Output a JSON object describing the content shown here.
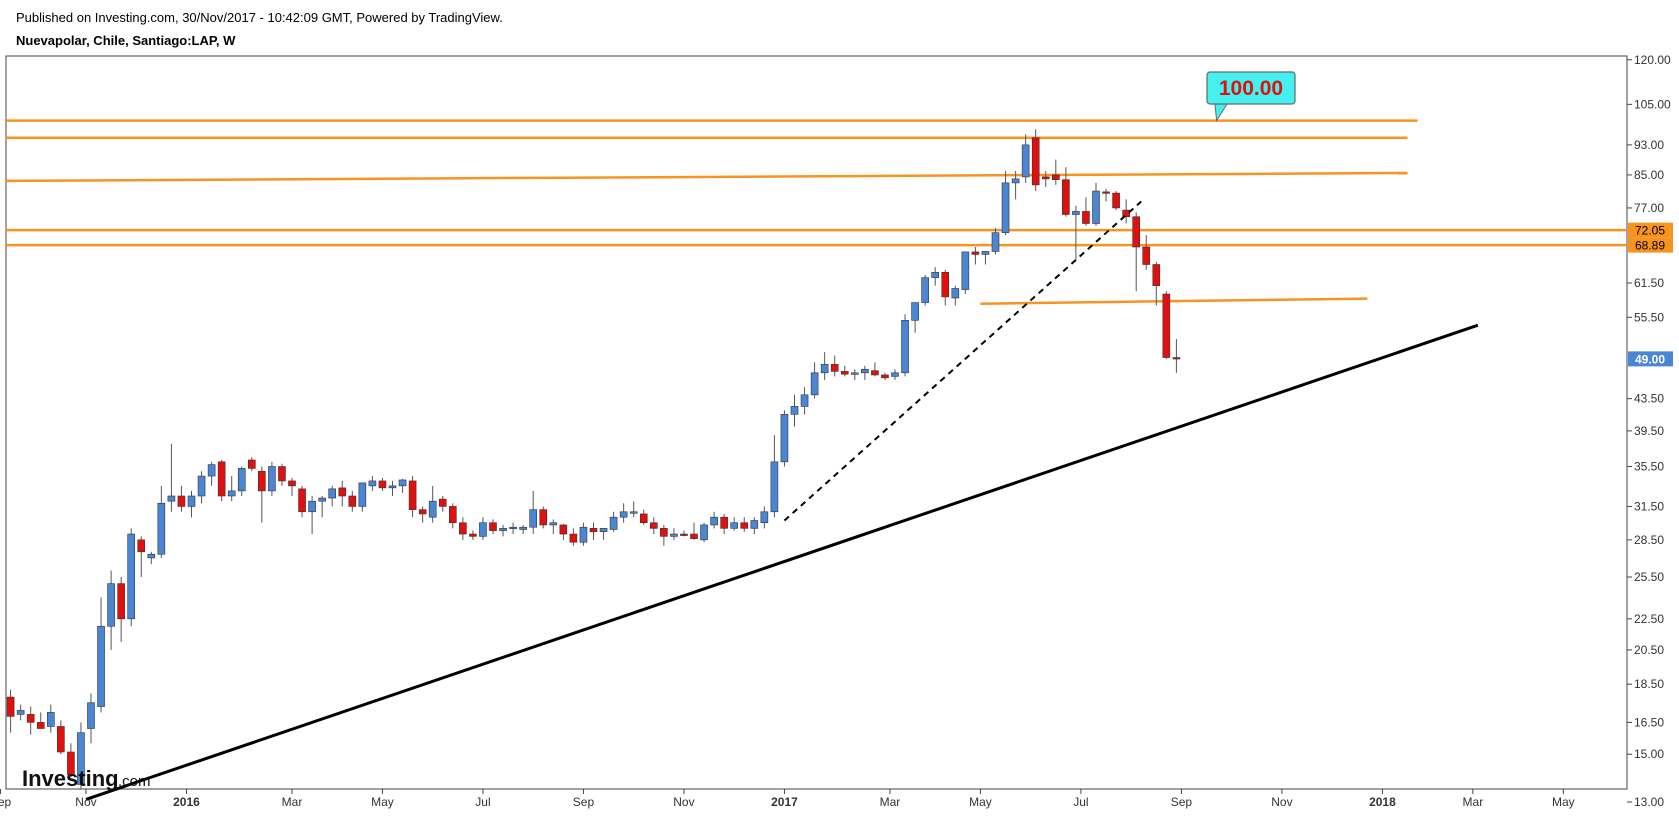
{
  "header": {
    "published": "Published on Investing.com, 30/Nov/2017 - 10:42:09 GMT, Powered by TradingView.",
    "symbol": "Nuevapolar, Chile, Santiago:LAP, W"
  },
  "logo": {
    "main": "Investing",
    "suffix": ".com"
  },
  "colors": {
    "up": "#4a86d4",
    "down": "#e0100f",
    "wick": "#555555",
    "level_line": "#f7931e",
    "trend_line": "#000000",
    "callout_bg": "#44f0f0",
    "callout_text": "#e0100f",
    "price_tag_blue": "#4a86d4",
    "price_tag_orange": "#f7931e"
  },
  "chart_data": {
    "type": "candlestick",
    "title": "Nuevapolar, Chile, Santiago:LAP, W",
    "y_scale": "log",
    "ylim": [
      13.0,
      121.0
    ],
    "y_ticks": [
      "120.00",
      "105.00",
      "93.00",
      "85.00",
      "77.00",
      "72.05",
      "68.89",
      "61.50",
      "55.50",
      "49.00",
      "43.50",
      "39.50",
      "35.50",
      "31.50",
      "28.50",
      "25.50",
      "22.50",
      "20.50",
      "18.50",
      "16.50",
      "15.00",
      "13.00"
    ],
    "y_tick_values": [
      120,
      105,
      93,
      85,
      77,
      61.5,
      55.5,
      43.5,
      39.5,
      35.5,
      31.5,
      28.5,
      25.5,
      22.5,
      20.5,
      18.5,
      16.5,
      15,
      13
    ],
    "x_ticks": [
      {
        "label": "Sep",
        "week": -1,
        "bold": false
      },
      {
        "label": "Nov",
        "week": 7.5,
        "bold": false
      },
      {
        "label": "2016",
        "week": 17.5,
        "bold": true
      },
      {
        "label": "Mar",
        "week": 28,
        "bold": false
      },
      {
        "label": "May",
        "week": 37,
        "bold": false
      },
      {
        "label": "Jul",
        "week": 47,
        "bold": false
      },
      {
        "label": "Sep",
        "week": 57,
        "bold": false
      },
      {
        "label": "Nov",
        "week": 67,
        "bold": false
      },
      {
        "label": "2017",
        "week": 77,
        "bold": true
      },
      {
        "label": "Mar",
        "week": 87.5,
        "bold": false
      },
      {
        "label": "May",
        "week": 96.5,
        "bold": false
      },
      {
        "label": "Jul",
        "week": 106.5,
        "bold": false
      },
      {
        "label": "Sep",
        "week": 116.5,
        "bold": false
      },
      {
        "label": "Nov",
        "week": 126.5,
        "bold": false
      },
      {
        "label": "2018",
        "week": 136.5,
        "bold": true
      },
      {
        "label": "Mar",
        "week": 145.5,
        "bold": false
      },
      {
        "label": "May",
        "week": 154.5,
        "bold": false
      }
    ],
    "candles": [
      [
        17.8,
        18.2,
        16.0,
        16.8
      ],
      [
        16.9,
        17.4,
        16.6,
        17.1
      ],
      [
        16.9,
        17.3,
        15.9,
        16.5
      ],
      [
        16.5,
        17.0,
        16.2,
        16.2
      ],
      [
        16.3,
        17.4,
        16.0,
        17.0
      ],
      [
        16.3,
        16.6,
        15.0,
        15.1
      ],
      [
        15.1,
        15.5,
        14.0,
        14.1
      ],
      [
        13.7,
        16.5,
        13.5,
        16.0
      ],
      [
        16.2,
        18.0,
        15.5,
        17.5
      ],
      [
        17.3,
        24.0,
        17.0,
        22.0
      ],
      [
        22.0,
        26.0,
        20.5,
        25.0
      ],
      [
        25.0,
        25.5,
        21.0,
        22.5
      ],
      [
        22.5,
        29.5,
        22.0,
        29.0
      ],
      [
        28.5,
        28.8,
        25.5,
        27.5
      ],
      [
        27.0,
        27.5,
        26.5,
        27.3
      ],
      [
        27.3,
        33.5,
        27.0,
        31.8
      ],
      [
        32.0,
        38.0,
        31.0,
        32.5
      ],
      [
        32.5,
        33.5,
        31.0,
        31.5
      ],
      [
        31.5,
        33.0,
        30.5,
        32.5
      ],
      [
        32.5,
        35.0,
        31.8,
        34.5
      ],
      [
        34.5,
        36.0,
        33.5,
        35.7
      ],
      [
        36.0,
        36.2,
        32.0,
        32.5
      ],
      [
        32.5,
        34.5,
        32.0,
        33.0
      ],
      [
        33.0,
        35.5,
        32.5,
        35.3
      ],
      [
        36.2,
        36.5,
        35.0,
        35.3
      ],
      [
        35.0,
        35.5,
        30.0,
        33.0
      ],
      [
        33.0,
        36.0,
        32.5,
        35.5
      ],
      [
        35.5,
        35.8,
        33.5,
        34.0
      ],
      [
        34.0,
        34.3,
        32.5,
        33.5
      ],
      [
        33.2,
        33.5,
        30.5,
        31.0
      ],
      [
        31.0,
        32.5,
        29.0,
        32.0
      ],
      [
        32.0,
        32.5,
        30.5,
        32.3
      ],
      [
        32.3,
        33.5,
        31.5,
        33.2
      ],
      [
        33.3,
        34.0,
        31.5,
        32.5
      ],
      [
        32.5,
        33.0,
        31.0,
        31.5
      ],
      [
        31.5,
        33.5,
        31.0,
        33.8
      ],
      [
        33.5,
        34.5,
        33.0,
        34.0
      ],
      [
        34.0,
        34.3,
        33.0,
        33.3
      ],
      [
        33.3,
        34.0,
        32.5,
        33.5
      ],
      [
        33.5,
        34.2,
        32.8,
        34.1
      ],
      [
        34.0,
        34.5,
        30.5,
        31.2
      ],
      [
        31.2,
        31.5,
        30.0,
        30.8
      ],
      [
        30.5,
        33.5,
        30.0,
        32.0
      ],
      [
        32.2,
        32.5,
        31.0,
        31.5
      ],
      [
        31.5,
        31.8,
        29.5,
        30.0
      ],
      [
        30.0,
        30.5,
        28.5,
        29.0
      ],
      [
        29.0,
        29.3,
        28.5,
        28.8
      ],
      [
        28.8,
        30.5,
        28.5,
        30.0
      ],
      [
        30.0,
        30.3,
        29.0,
        29.3
      ],
      [
        29.3,
        29.8,
        28.8,
        29.5
      ],
      [
        29.5,
        30.0,
        29.0,
        29.6
      ],
      [
        29.4,
        29.8,
        29.0,
        29.6
      ],
      [
        29.6,
        33.0,
        29.0,
        31.2
      ],
      [
        31.2,
        31.5,
        29.5,
        29.8
      ],
      [
        29.8,
        30.3,
        29.0,
        30.0
      ],
      [
        29.8,
        29.9,
        28.5,
        29.0
      ],
      [
        29.0,
        29.5,
        28.0,
        28.3
      ],
      [
        28.3,
        30.0,
        28.0,
        29.6
      ],
      [
        29.5,
        30.0,
        28.5,
        29.2
      ],
      [
        29.2,
        29.5,
        28.5,
        29.5
      ],
      [
        29.4,
        31.0,
        29.2,
        30.5
      ],
      [
        30.5,
        31.8,
        30.0,
        31.0
      ],
      [
        31.0,
        32.0,
        30.5,
        31.0
      ],
      [
        30.8,
        31.2,
        29.8,
        30.0
      ],
      [
        30.0,
        30.5,
        29.0,
        29.5
      ],
      [
        29.5,
        29.8,
        28.0,
        28.8
      ],
      [
        28.8,
        29.5,
        28.5,
        29.0
      ],
      [
        29.0,
        29.3,
        28.8,
        28.9
      ],
      [
        29.0,
        30.0,
        28.5,
        28.6
      ],
      [
        28.5,
        30.0,
        28.3,
        29.8
      ],
      [
        29.8,
        31.0,
        29.5,
        30.5
      ],
      [
        30.5,
        30.8,
        29.0,
        29.5
      ],
      [
        29.5,
        30.5,
        29.3,
        30.0
      ],
      [
        30.0,
        30.5,
        29.2,
        29.5
      ],
      [
        29.5,
        30.5,
        29.0,
        30.2
      ],
      [
        30.0,
        31.5,
        29.5,
        31.0
      ],
      [
        31.0,
        39.0,
        30.5,
        36.0
      ],
      [
        36.0,
        42.0,
        35.5,
        41.5
      ],
      [
        41.5,
        44.0,
        40.0,
        42.5
      ],
      [
        42.5,
        45.0,
        41.5,
        44.0
      ],
      [
        44.0,
        48.5,
        43.5,
        47.0
      ],
      [
        47.0,
        50.0,
        46.0,
        48.2
      ],
      [
        48.2,
        49.5,
        46.5,
        47.2
      ],
      [
        47.2,
        48.0,
        46.5,
        46.8
      ],
      [
        46.8,
        47.5,
        46.0,
        47.0
      ],
      [
        47.0,
        48.0,
        46.0,
        47.5
      ],
      [
        47.3,
        48.5,
        46.5,
        46.7
      ],
      [
        46.7,
        47.0,
        46.0,
        46.3
      ],
      [
        46.5,
        47.5,
        46.0,
        47.0
      ],
      [
        47.0,
        56.0,
        46.5,
        55.0
      ],
      [
        55.0,
        58.0,
        53.0,
        58.0
      ],
      [
        58.0,
        63.0,
        57.5,
        62.5
      ],
      [
        62.5,
        64.5,
        61.0,
        63.5
      ],
      [
        63.5,
        64.0,
        57.5,
        59.0
      ],
      [
        58.8,
        61.0,
        57.5,
        60.5
      ],
      [
        60.3,
        67.0,
        59.5,
        67.5
      ],
      [
        67.5,
        68.5,
        65.0,
        67.0
      ],
      [
        67.0,
        67.5,
        65.0,
        67.6
      ],
      [
        67.6,
        72.5,
        67.0,
        71.5
      ],
      [
        71.5,
        86.0,
        71.0,
        83.0
      ],
      [
        83.0,
        86.0,
        79.0,
        84.0
      ],
      [
        84.5,
        96.0,
        83.0,
        93.0
      ],
      [
        95.0,
        97.5,
        81.0,
        82.5
      ],
      [
        84.5,
        86.0,
        82.0,
        84.0
      ],
      [
        85.0,
        89.0,
        82.5,
        83.8
      ],
      [
        83.8,
        87.0,
        75.0,
        75.5
      ],
      [
        75.5,
        77.5,
        66.0,
        76.2
      ],
      [
        76.2,
        79.5,
        73.0,
        73.5
      ],
      [
        73.5,
        83.0,
        73.0,
        81.0
      ],
      [
        80.8,
        81.5,
        78.5,
        80.5
      ],
      [
        80.5,
        81.0,
        76.5,
        77.0
      ],
      [
        76.5,
        79.0,
        73.5,
        75.0
      ],
      [
        75.0,
        76.0,
        60.0,
        68.5
      ],
      [
        68.5,
        71.0,
        64.0,
        65.0
      ],
      [
        65.0,
        65.5,
        57.5,
        61.0
      ],
      [
        59.5,
        60.0,
        49.0,
        49.2
      ],
      [
        49.2,
        52.0,
        47.0,
        49.0
      ]
    ],
    "horizontal_levels": [
      {
        "y0": 100.0,
        "y1": 100.0,
        "w0": -3,
        "w1": 140
      },
      {
        "y0": 95.0,
        "y1": 95.0,
        "w0": -3,
        "w1": 139
      },
      {
        "y0": 83.5,
        "y1": 85.5,
        "w0": -3,
        "w1": 139
      },
      {
        "y0": 72.05,
        "y1": 72.05,
        "w0": -3,
        "w1": 164
      },
      {
        "y0": 68.89,
        "y1": 68.89,
        "w0": -3,
        "w1": 164
      },
      {
        "y0": 57.8,
        "y1": 58.7,
        "w0": 96.5,
        "w1": 135
      }
    ],
    "trend_lines": [
      {
        "w0": 7.5,
        "y0": 13.1,
        "w1": 146,
        "y1": 54.2,
        "dashed": false
      },
      {
        "w0": 77,
        "y0": 30.2,
        "w1": 112.5,
        "y1": 78.5,
        "dashed": true
      }
    ],
    "callout": {
      "text": "100.00",
      "w": 120,
      "y": 100.0
    },
    "price_tags": [
      {
        "text": "72.05",
        "y": 72.05,
        "color": "orange"
      },
      {
        "text": "68.89",
        "y": 68.89,
        "color": "orange"
      },
      {
        "text": "49.00",
        "y": 49.0,
        "color": "blue"
      }
    ]
  }
}
